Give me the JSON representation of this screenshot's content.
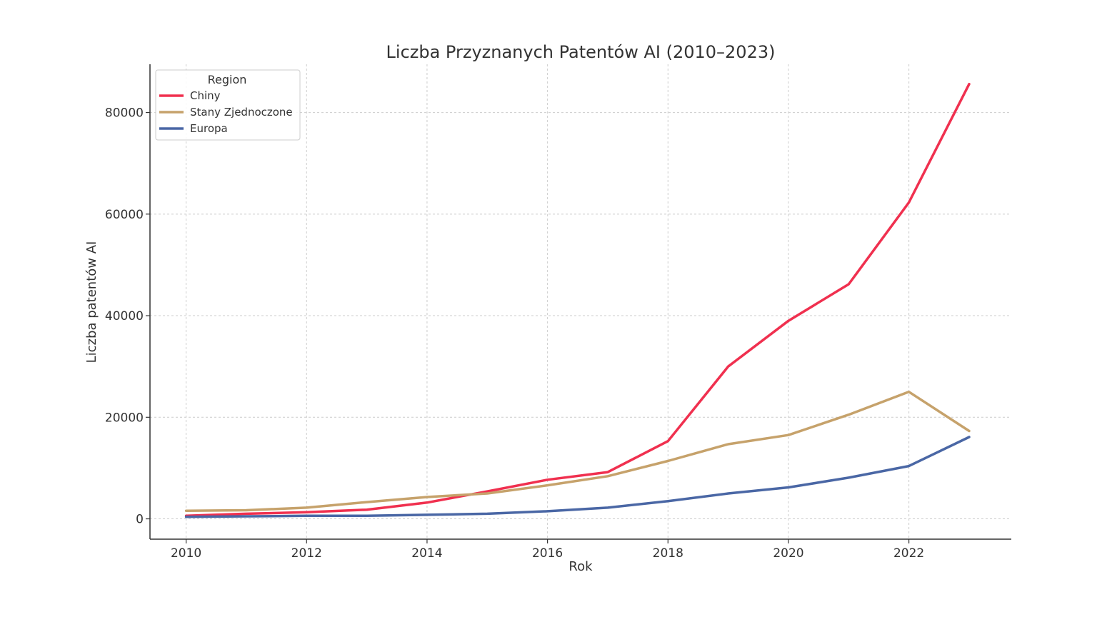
{
  "chart_data": {
    "type": "line",
    "title": "Liczba Przyznanych Patentów AI (2010–2023)",
    "xlabel": "Rok",
    "ylabel": "Liczba patentów AI",
    "x": [
      2010,
      2011,
      2012,
      2013,
      2014,
      2015,
      2016,
      2017,
      2018,
      2019,
      2020,
      2021,
      2022,
      2023
    ],
    "xticks": [
      2010,
      2012,
      2014,
      2016,
      2018,
      2020,
      2022
    ],
    "yticks": [
      0,
      20000,
      40000,
      60000,
      80000
    ],
    "xlim": [
      2009.4,
      2023.7
    ],
    "ylim": [
      -4000,
      89500
    ],
    "grid": true,
    "legend": {
      "title": "Region",
      "placement": "top-left"
    },
    "series": [
      {
        "name": "Chiny",
        "color": "#f0304f",
        "values": [
          600,
          1000,
          1300,
          1800,
          3200,
          5400,
          7700,
          9200,
          15300,
          30000,
          39000,
          46200,
          62300,
          85600
        ]
      },
      {
        "name": "Stany Zjednoczone",
        "color": "#c6a26b",
        "values": [
          1600,
          1700,
          2200,
          3300,
          4300,
          5000,
          6600,
          8400,
          11400,
          14700,
          16500,
          20500,
          25000,
          17300
        ]
      },
      {
        "name": "Europa",
        "color": "#4a67a5",
        "values": [
          400,
          500,
          600,
          600,
          800,
          1000,
          1500,
          2200,
          3500,
          5000,
          6200,
          8100,
          10400,
          16100
        ]
      }
    ]
  }
}
